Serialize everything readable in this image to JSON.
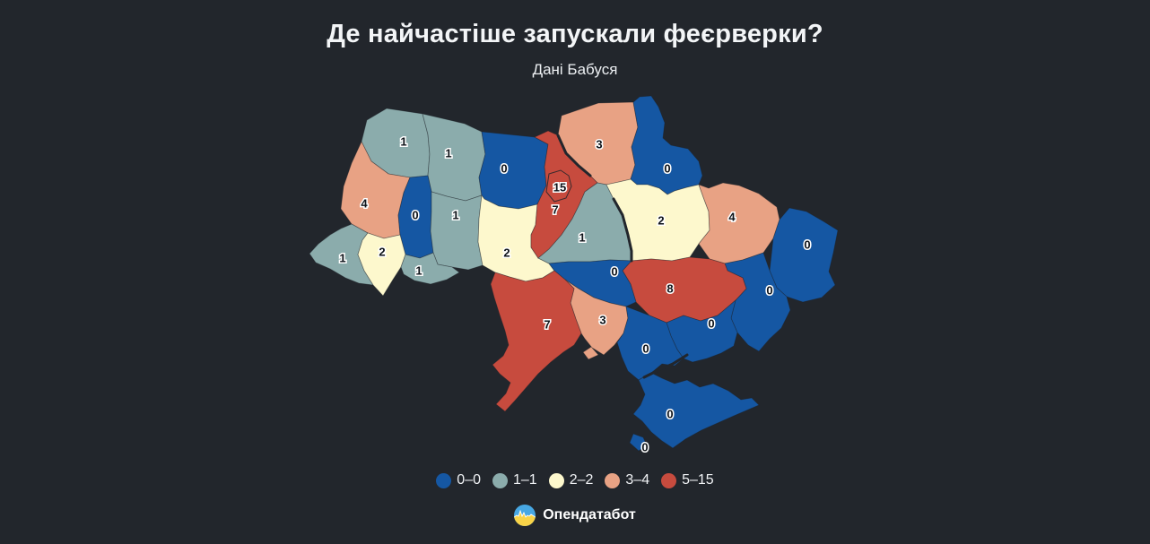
{
  "title": "Де найчастіше запускали феєрверки?",
  "subtitle": "Дані Бабуся",
  "footer": {
    "brand": "Опендатабот"
  },
  "colors": {
    "background": "#22262c",
    "label_text": "#0e1319",
    "label_halo": "#ffffff",
    "title_text": "#f3f5f7"
  },
  "legend": {
    "items": [
      {
        "label": "0–0",
        "min": 0,
        "max": 0,
        "color": "#1557a3"
      },
      {
        "label": "1–1",
        "min": 1,
        "max": 1,
        "color": "#8bacac"
      },
      {
        "label": "2–2",
        "min": 2,
        "max": 2,
        "color": "#fdf8cd"
      },
      {
        "label": "3–4",
        "min": 3,
        "max": 4,
        "color": "#e8a284"
      },
      {
        "label": "5–15",
        "min": 5,
        "max": 15,
        "color": "#c74b3e"
      }
    ]
  },
  "chart_data": {
    "type": "choropleth",
    "map": "Ukraine oblasts",
    "title": "Де найчастіше запускали феєрверки?",
    "subtitle": "Дані Бабуся",
    "legend_bins": [
      "0–0",
      "1–1",
      "2–2",
      "3–4",
      "5–15"
    ],
    "value_range": [
      0,
      15
    ],
    "regions": [
      {
        "id": "volyn",
        "name": "Volyn",
        "value": 1
      },
      {
        "id": "rivne",
        "name": "Rivne",
        "value": 1
      },
      {
        "id": "zhytomyr",
        "name": "Zhytomyr",
        "value": 0
      },
      {
        "id": "chernihiv",
        "name": "Chernihiv",
        "value": 3
      },
      {
        "id": "sumy",
        "name": "Sumy",
        "value": 0
      },
      {
        "id": "lviv",
        "name": "Lviv",
        "value": 4
      },
      {
        "id": "ternopil",
        "name": "Ternopil",
        "value": 0
      },
      {
        "id": "khmelnytskyi",
        "name": "Khmelnytskyi",
        "value": 1
      },
      {
        "id": "zakarpattia",
        "name": "Zakarpattia",
        "value": 1
      },
      {
        "id": "ivano-frankivsk",
        "name": "Ivano-Frankivsk",
        "value": 2
      },
      {
        "id": "chernivtsi",
        "name": "Chernivtsi",
        "value": 1
      },
      {
        "id": "vinnytsia",
        "name": "Vinnytsia",
        "value": 2
      },
      {
        "id": "kyiv-oblast",
        "name": "Kyiv oblast",
        "value": 7
      },
      {
        "id": "kyiv-city",
        "name": "Kyiv city",
        "value": 15
      },
      {
        "id": "cherkasy",
        "name": "Cherkasy",
        "value": 1
      },
      {
        "id": "poltava",
        "name": "Poltava",
        "value": 2
      },
      {
        "id": "kharkiv",
        "name": "Kharkiv",
        "value": 4
      },
      {
        "id": "luhansk",
        "name": "Luhansk",
        "value": 0
      },
      {
        "id": "donetsk",
        "name": "Donetsk",
        "value": 0
      },
      {
        "id": "dnipropetrovsk",
        "name": "Dnipropetrovsk",
        "value": 8
      },
      {
        "id": "zaporizhzhia",
        "name": "Zaporizhzhia",
        "value": 0
      },
      {
        "id": "kirovohrad",
        "name": "Kirovohrad",
        "value": 0
      },
      {
        "id": "mykolaiv",
        "name": "Mykolaiv",
        "value": 3
      },
      {
        "id": "odesa",
        "name": "Odesa",
        "value": 7
      },
      {
        "id": "kherson",
        "name": "Kherson",
        "value": 0
      },
      {
        "id": "crimea",
        "name": "Crimea",
        "value": 0
      },
      {
        "id": "sevastopol",
        "name": "Sevastopol",
        "value": 0
      }
    ]
  }
}
